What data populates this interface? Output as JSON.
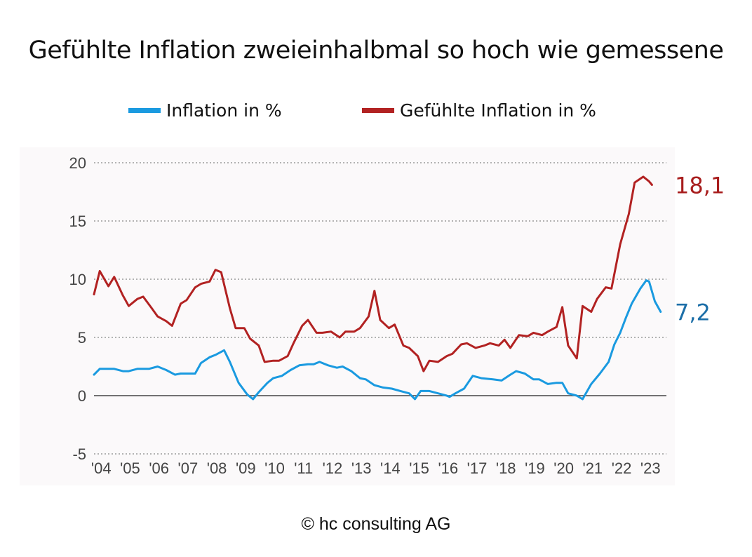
{
  "chart_data": {
    "type": "line",
    "title": "Gefühlte Inflation zweieinhalbmal so hoch wie gemessene",
    "ylim": [
      -5,
      20
    ],
    "yticks": [
      20,
      15,
      10,
      5,
      0,
      -5
    ],
    "ytick_labels": [
      "20",
      "15",
      "10",
      "5",
      "0",
      "-5"
    ],
    "xlim": [
      2003.8,
      2023.6
    ],
    "xtick_labels": [
      "'04",
      "'05",
      "'06",
      "'07",
      "'08",
      "'09",
      "'10",
      "'11",
      "'12",
      "'13",
      "'14",
      "'15",
      "'16",
      "'17",
      "'18",
      "'19",
      "'20",
      "'21",
      "'22",
      "'23"
    ],
    "xtick_years": [
      2004,
      2005,
      2006,
      2007,
      2008,
      2009,
      2010,
      2011,
      2012,
      2013,
      2014,
      2015,
      2016,
      2017,
      2018,
      2019,
      2020,
      2021,
      2022,
      2023
    ],
    "grid": "horizontal dotted",
    "legend_position": "top",
    "series": [
      {
        "name": "Inflation in %",
        "color": "#1a9ae0",
        "end_label": "7,2",
        "end_label_color": "#1d6fa8",
        "points": [
          [
            2003.8,
            1.8
          ],
          [
            2004.0,
            2.3
          ],
          [
            2004.5,
            2.3
          ],
          [
            2004.8,
            2.1
          ],
          [
            2005.0,
            2.1
          ],
          [
            2005.3,
            2.3
          ],
          [
            2005.7,
            2.3
          ],
          [
            2006.0,
            2.5
          ],
          [
            2006.3,
            2.2
          ],
          [
            2006.6,
            1.8
          ],
          [
            2006.8,
            1.9
          ],
          [
            2007.0,
            1.9
          ],
          [
            2007.3,
            1.9
          ],
          [
            2007.5,
            2.8
          ],
          [
            2007.8,
            3.3
          ],
          [
            2008.0,
            3.5
          ],
          [
            2008.3,
            3.9
          ],
          [
            2008.5,
            2.9
          ],
          [
            2008.8,
            1.1
          ],
          [
            2009.1,
            0.1
          ],
          [
            2009.3,
            -0.3
          ],
          [
            2009.5,
            0.3
          ],
          [
            2009.8,
            1.1
          ],
          [
            2010.0,
            1.5
          ],
          [
            2010.3,
            1.7
          ],
          [
            2010.6,
            2.2
          ],
          [
            2010.9,
            2.6
          ],
          [
            2011.2,
            2.7
          ],
          [
            2011.4,
            2.7
          ],
          [
            2011.6,
            2.9
          ],
          [
            2011.9,
            2.6
          ],
          [
            2012.2,
            2.4
          ],
          [
            2012.4,
            2.5
          ],
          [
            2012.7,
            2.1
          ],
          [
            2013.0,
            1.5
          ],
          [
            2013.2,
            1.4
          ],
          [
            2013.5,
            0.9
          ],
          [
            2013.8,
            0.7
          ],
          [
            2014.1,
            0.6
          ],
          [
            2014.4,
            0.4
          ],
          [
            2014.7,
            0.2
          ],
          [
            2014.9,
            -0.3
          ],
          [
            2015.1,
            0.4
          ],
          [
            2015.4,
            0.4
          ],
          [
            2015.7,
            0.2
          ],
          [
            2016.0,
            0.0
          ],
          [
            2016.1,
            -0.1
          ],
          [
            2016.3,
            0.2
          ],
          [
            2016.6,
            0.6
          ],
          [
            2016.9,
            1.7
          ],
          [
            2017.2,
            1.5
          ],
          [
            2017.6,
            1.4
          ],
          [
            2017.9,
            1.3
          ],
          [
            2018.2,
            1.8
          ],
          [
            2018.4,
            2.1
          ],
          [
            2018.7,
            1.9
          ],
          [
            2019.0,
            1.4
          ],
          [
            2019.2,
            1.4
          ],
          [
            2019.5,
            1.0
          ],
          [
            2019.8,
            1.1
          ],
          [
            2020.0,
            1.1
          ],
          [
            2020.2,
            0.2
          ],
          [
            2020.5,
            0.0
          ],
          [
            2020.7,
            -0.3
          ],
          [
            2021.0,
            1.0
          ],
          [
            2021.3,
            1.9
          ],
          [
            2021.6,
            2.9
          ],
          [
            2021.8,
            4.4
          ],
          [
            2022.0,
            5.4
          ],
          [
            2022.2,
            6.7
          ],
          [
            2022.4,
            7.9
          ],
          [
            2022.7,
            9.2
          ],
          [
            2022.9,
            9.9
          ],
          [
            2023.0,
            9.8
          ],
          [
            2023.2,
            8.1
          ],
          [
            2023.4,
            7.2
          ]
        ]
      },
      {
        "name": "Gefühlte Inflation in %",
        "color": "#b22222",
        "end_label": "18,1",
        "end_label_color": "#a81e1e",
        "points": [
          [
            2003.8,
            8.7
          ],
          [
            2004.0,
            10.7
          ],
          [
            2004.3,
            9.4
          ],
          [
            2004.5,
            10.2
          ],
          [
            2004.8,
            8.6
          ],
          [
            2005.0,
            7.7
          ],
          [
            2005.3,
            8.3
          ],
          [
            2005.5,
            8.5
          ],
          [
            2005.8,
            7.5
          ],
          [
            2006.0,
            6.8
          ],
          [
            2006.3,
            6.4
          ],
          [
            2006.5,
            6.0
          ],
          [
            2006.8,
            7.9
          ],
          [
            2007.0,
            8.2
          ],
          [
            2007.3,
            9.3
          ],
          [
            2007.5,
            9.6
          ],
          [
            2007.8,
            9.8
          ],
          [
            2008.0,
            10.8
          ],
          [
            2008.2,
            10.6
          ],
          [
            2008.5,
            7.5
          ],
          [
            2008.7,
            5.8
          ],
          [
            2009.0,
            5.8
          ],
          [
            2009.2,
            4.9
          ],
          [
            2009.5,
            4.3
          ],
          [
            2009.7,
            2.9
          ],
          [
            2010.0,
            3.0
          ],
          [
            2010.2,
            3.0
          ],
          [
            2010.5,
            3.4
          ],
          [
            2010.7,
            4.5
          ],
          [
            2011.0,
            6.0
          ],
          [
            2011.2,
            6.5
          ],
          [
            2011.5,
            5.4
          ],
          [
            2011.7,
            5.4
          ],
          [
            2012.0,
            5.5
          ],
          [
            2012.3,
            5.0
          ],
          [
            2012.5,
            5.5
          ],
          [
            2012.8,
            5.5
          ],
          [
            2013.0,
            5.8
          ],
          [
            2013.3,
            6.8
          ],
          [
            2013.5,
            9.0
          ],
          [
            2013.7,
            6.5
          ],
          [
            2014.0,
            5.8
          ],
          [
            2014.2,
            6.1
          ],
          [
            2014.5,
            4.3
          ],
          [
            2014.7,
            4.1
          ],
          [
            2015.0,
            3.4
          ],
          [
            2015.2,
            2.1
          ],
          [
            2015.4,
            3.0
          ],
          [
            2015.7,
            2.9
          ],
          [
            2016.0,
            3.4
          ],
          [
            2016.2,
            3.6
          ],
          [
            2016.5,
            4.4
          ],
          [
            2016.7,
            4.5
          ],
          [
            2017.0,
            4.1
          ],
          [
            2017.3,
            4.3
          ],
          [
            2017.5,
            4.5
          ],
          [
            2017.8,
            4.3
          ],
          [
            2018.0,
            4.8
          ],
          [
            2018.2,
            4.1
          ],
          [
            2018.5,
            5.2
          ],
          [
            2018.8,
            5.1
          ],
          [
            2019.0,
            5.4
          ],
          [
            2019.3,
            5.2
          ],
          [
            2019.5,
            5.5
          ],
          [
            2019.8,
            5.9
          ],
          [
            2020.0,
            7.6
          ],
          [
            2020.2,
            4.3
          ],
          [
            2020.5,
            3.2
          ],
          [
            2020.7,
            7.7
          ],
          [
            2021.0,
            7.2
          ],
          [
            2021.2,
            8.3
          ],
          [
            2021.5,
            9.3
          ],
          [
            2021.7,
            9.2
          ],
          [
            2022.0,
            13.0
          ],
          [
            2022.3,
            15.6
          ],
          [
            2022.5,
            18.3
          ],
          [
            2022.8,
            18.8
          ],
          [
            2023.0,
            18.4
          ],
          [
            2023.1,
            18.1
          ]
        ]
      }
    ]
  },
  "copyright": "© hc consulting AG"
}
